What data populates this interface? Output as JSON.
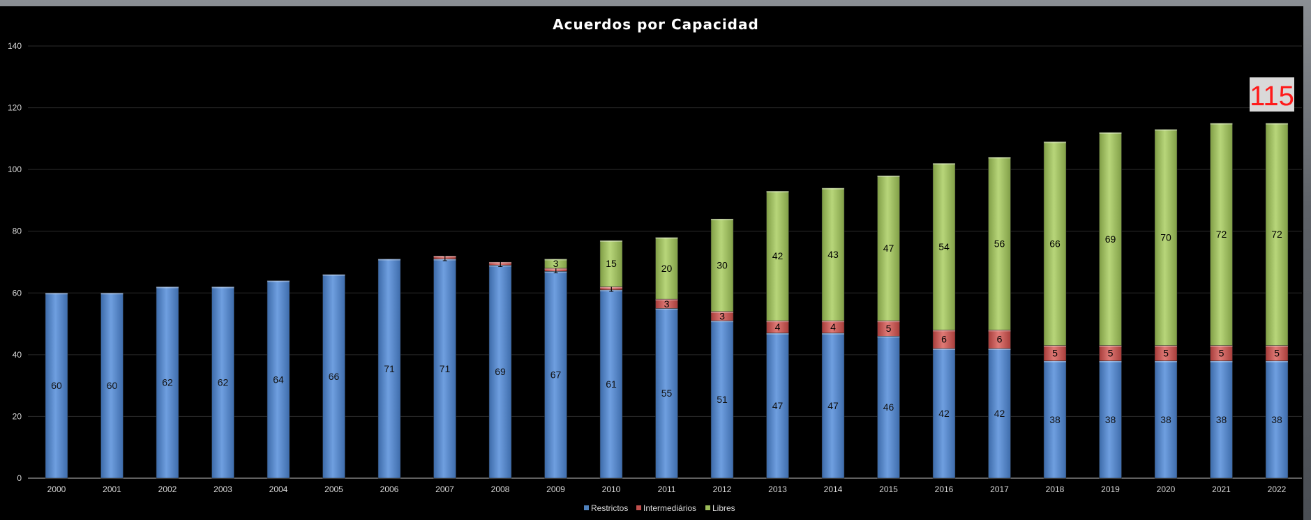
{
  "chart_data": {
    "type": "bar",
    "stacked": true,
    "title": "Acuerdos por Capacidad",
    "xlabel": "",
    "ylabel": "",
    "ylim": [
      0,
      140
    ],
    "yticks": [
      0,
      20,
      40,
      60,
      80,
      100,
      120,
      140
    ],
    "grid": true,
    "legend_position": "bottom",
    "categories": [
      "2000",
      "2001",
      "2002",
      "2003",
      "2004",
      "2005",
      "2006",
      "2007",
      "2008",
      "2009",
      "2010",
      "2011",
      "2012",
      "2013",
      "2014",
      "2015",
      "2016",
      "2017",
      "2018",
      "2019",
      "2020",
      "2021",
      "2022"
    ],
    "series": [
      {
        "name": "Restrictos",
        "color": "#4f81bd",
        "values": [
          60,
          60,
          62,
          62,
          64,
          66,
          71,
          71,
          69,
          67,
          61,
          55,
          51,
          47,
          47,
          46,
          42,
          42,
          38,
          38,
          38,
          38,
          38
        ]
      },
      {
        "name": "Intermediários",
        "color": "#c0504d",
        "values": [
          0,
          0,
          0,
          0,
          0,
          0,
          0,
          1,
          1,
          1,
          1,
          3,
          3,
          4,
          4,
          5,
          6,
          6,
          5,
          5,
          5,
          5,
          5
        ]
      },
      {
        "name": "Libres",
        "color": "#9bbb59",
        "values": [
          0,
          0,
          0,
          0,
          0,
          0,
          0,
          0,
          0,
          3,
          15,
          20,
          30,
          42,
          43,
          47,
          54,
          56,
          66,
          69,
          70,
          72,
          72
        ]
      }
    ],
    "annotation": {
      "text": "115",
      "category": "2022"
    }
  }
}
